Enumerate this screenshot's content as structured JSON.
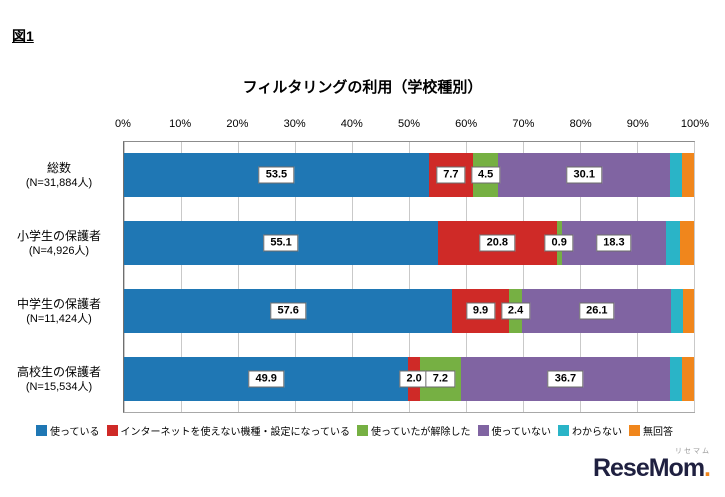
{
  "figure_label": "図1",
  "chart_data": {
    "type": "bar",
    "variant": "horizontal-100-stacked",
    "title": "フィルタリングの利用（学校種別）",
    "x_axis": {
      "min": 0,
      "max": 100,
      "tick_step": 10,
      "position": "top",
      "grid": true,
      "tick_labels": [
        "0%",
        "10%",
        "20%",
        "30%",
        "40%",
        "50%",
        "60%",
        "70%",
        "80%",
        "90%",
        "100%"
      ]
    },
    "categories": [
      {
        "label": "総数",
        "n": "(N=31,884人)"
      },
      {
        "label": "小学生の保護者",
        "n": "(N=4,926人)"
      },
      {
        "label": "中学生の保護者",
        "n": "(N=11,424人)"
      },
      {
        "label": "高校生の保護者",
        "n": "(N=15,534人)"
      }
    ],
    "series": [
      {
        "name": "使っている",
        "color": "#1f77b4",
        "show_labels": true,
        "values": [
          53.5,
          55.1,
          57.6,
          49.9
        ]
      },
      {
        "name": "インターネットを使えない機種・設定になっている",
        "color": "#cf2a27",
        "show_labels": true,
        "values": [
          7.7,
          20.8,
          9.9,
          2.0
        ]
      },
      {
        "name": "使っていたが解除した",
        "color": "#76b043",
        "show_labels": true,
        "values": [
          4.5,
          0.9,
          2.4,
          7.2
        ]
      },
      {
        "name": "使っていない",
        "color": "#8064a2",
        "show_labels": true,
        "values": [
          30.1,
          18.3,
          26.1,
          36.7
        ]
      },
      {
        "name": "わからない",
        "color": "#2ab4c7",
        "show_labels": false,
        "values": [
          2.1,
          2.5,
          2.0,
          2.1
        ]
      },
      {
        "name": "無回答",
        "color": "#f0861c",
        "show_labels": false,
        "values": [
          2.1,
          2.4,
          2.0,
          2.1
        ]
      }
    ],
    "legend_position": "bottom"
  },
  "watermark": {
    "subtext": "リセマム",
    "text": "ReseMom",
    "dot": "."
  }
}
